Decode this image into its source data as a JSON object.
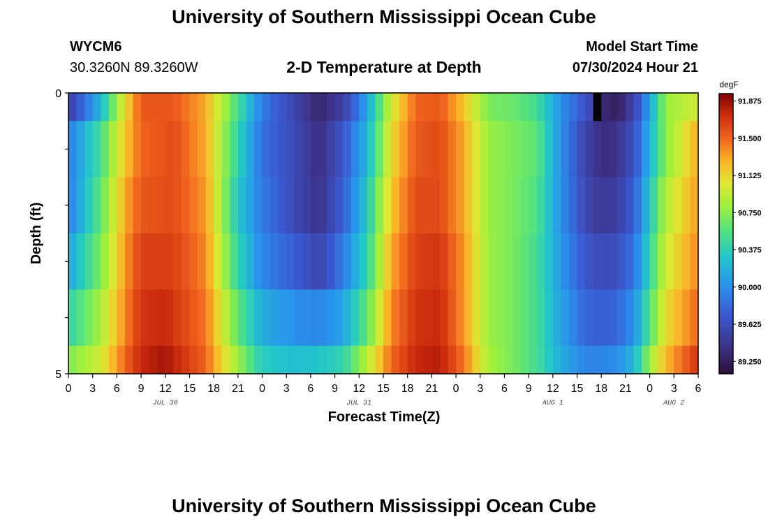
{
  "header": {
    "title": "University of Southern Mississippi Ocean Cube",
    "station_id": "WYCM6",
    "coords": "30.3260N  89.3260W",
    "subtitle": "2-D Temperature at Depth",
    "start_label": "Model Start Time",
    "start_value": "07/30/2024 Hour 21"
  },
  "footer": {
    "title": "University of Southern Mississippi Ocean Cube"
  },
  "chart_data": {
    "type": "heatmap",
    "xlabel": "Forecast Time(Z)",
    "ylabel": "Depth (ft)",
    "x_tick_labels": [
      "0",
      "3",
      "6",
      "9",
      "12",
      "15",
      "18",
      "21",
      "0",
      "3",
      "6",
      "9",
      "12",
      "15",
      "18",
      "21",
      "0",
      "3",
      "6",
      "9",
      "12",
      "15",
      "18",
      "21",
      "0",
      "3",
      "6"
    ],
    "date_labels": [
      {
        "label": "JUL 30",
        "hour": 12
      },
      {
        "label": "JUL 31",
        "hour": 36
      },
      {
        "label": "AUG 1",
        "hour": 60
      },
      {
        "label": "AUG 2",
        "hour": 75
      }
    ],
    "xlim": [
      0,
      78
    ],
    "ylim": [
      0,
      5
    ],
    "y_tick_labels": [
      "0",
      "5"
    ],
    "depth_levels": [
      0,
      1,
      2,
      3,
      4,
      5
    ],
    "colorbar": {
      "unit": "degF",
      "min": 89.125,
      "max": 91.95,
      "ticks": [
        "91.875",
        "91.500",
        "91.125",
        "90.750",
        "90.375",
        "90.000",
        "89.625",
        "89.250"
      ]
    },
    "temperature_traces": [
      {
        "depth_band": "0-0.5 ft",
        "points": [
          [
            0,
            89.5
          ],
          [
            4,
            90.2
          ],
          [
            7,
            91.1
          ],
          [
            9,
            91.55
          ],
          [
            13,
            91.55
          ],
          [
            17,
            91.3
          ],
          [
            20,
            90.7
          ],
          [
            24,
            89.9
          ],
          [
            28,
            89.55
          ],
          [
            31,
            89.3
          ],
          [
            34,
            89.5
          ],
          [
            37,
            90.1
          ],
          [
            40,
            91.0
          ],
          [
            43,
            91.5
          ],
          [
            46,
            91.55
          ],
          [
            49,
            91.2
          ],
          [
            52,
            90.7
          ],
          [
            55,
            90.65
          ],
          [
            58,
            90.5
          ],
          [
            61,
            90.0
          ],
          [
            64,
            89.7
          ],
          [
            66,
            89.35
          ],
          [
            68,
            89.25
          ],
          [
            70,
            89.55
          ],
          [
            72,
            90.1
          ],
          [
            74,
            90.8
          ],
          [
            78,
            91.0
          ]
        ]
      },
      {
        "depth_band": "0.5-1.5 ft",
        "points": [
          [
            0,
            89.9
          ],
          [
            4,
            90.5
          ],
          [
            7,
            91.2
          ],
          [
            9,
            91.5
          ],
          [
            13,
            91.6
          ],
          [
            17,
            91.3
          ],
          [
            21,
            90.4
          ],
          [
            24,
            89.85
          ],
          [
            28,
            89.6
          ],
          [
            31,
            89.35
          ],
          [
            34,
            89.7
          ],
          [
            37,
            90.2
          ],
          [
            40,
            91.1
          ],
          [
            43,
            91.55
          ],
          [
            46,
            91.6
          ],
          [
            49,
            91.3
          ],
          [
            52,
            90.8
          ],
          [
            55,
            90.7
          ],
          [
            58,
            90.6
          ],
          [
            61,
            90.0
          ],
          [
            64,
            89.55
          ],
          [
            66,
            89.35
          ],
          [
            68,
            89.4
          ],
          [
            70,
            89.65
          ],
          [
            72,
            90.2
          ],
          [
            74,
            90.75
          ],
          [
            78,
            91.3
          ]
        ]
      },
      {
        "depth_band": "1.5-2.5 ft",
        "points": [
          [
            0,
            89.9
          ],
          [
            4,
            90.6
          ],
          [
            7,
            91.3
          ],
          [
            9,
            91.55
          ],
          [
            13,
            91.6
          ],
          [
            17,
            91.35
          ],
          [
            21,
            90.3
          ],
          [
            24,
            89.9
          ],
          [
            28,
            89.6
          ],
          [
            31,
            89.4
          ],
          [
            34,
            89.75
          ],
          [
            37,
            90.3
          ],
          [
            40,
            91.2
          ],
          [
            43,
            91.6
          ],
          [
            46,
            91.6
          ],
          [
            49,
            91.3
          ],
          [
            52,
            90.8
          ],
          [
            55,
            90.7
          ],
          [
            58,
            90.55
          ],
          [
            61,
            90.0
          ],
          [
            64,
            89.6
          ],
          [
            66,
            89.45
          ],
          [
            68,
            89.5
          ],
          [
            70,
            89.75
          ],
          [
            72,
            90.3
          ],
          [
            74,
            90.9
          ],
          [
            78,
            91.35
          ]
        ]
      },
      {
        "depth_band": "2.5-3.5 ft",
        "points": [
          [
            0,
            90.1
          ],
          [
            4,
            90.7
          ],
          [
            7,
            91.35
          ],
          [
            9,
            91.65
          ],
          [
            13,
            91.65
          ],
          [
            17,
            91.4
          ],
          [
            21,
            90.4
          ],
          [
            24,
            89.95
          ],
          [
            28,
            89.75
          ],
          [
            31,
            89.55
          ],
          [
            34,
            89.9
          ],
          [
            37,
            90.4
          ],
          [
            40,
            91.3
          ],
          [
            43,
            91.65
          ],
          [
            46,
            91.7
          ],
          [
            49,
            91.35
          ],
          [
            52,
            90.8
          ],
          [
            55,
            90.7
          ],
          [
            58,
            90.5
          ],
          [
            61,
            90.05
          ],
          [
            64,
            89.7
          ],
          [
            66,
            89.6
          ],
          [
            68,
            89.65
          ],
          [
            70,
            89.85
          ],
          [
            72,
            90.4
          ],
          [
            74,
            91.0
          ],
          [
            78,
            91.4
          ]
        ]
      },
      {
        "depth_band": "3.5-4.5 ft",
        "points": [
          [
            0,
            90.4
          ],
          [
            4,
            90.85
          ],
          [
            7,
            91.4
          ],
          [
            9,
            91.7
          ],
          [
            12,
            91.75
          ],
          [
            17,
            91.45
          ],
          [
            21,
            90.6
          ],
          [
            24,
            90.15
          ],
          [
            28,
            90.0
          ],
          [
            31,
            89.95
          ],
          [
            34,
            90.1
          ],
          [
            37,
            90.6
          ],
          [
            40,
            91.4
          ],
          [
            43,
            91.7
          ],
          [
            46,
            91.75
          ],
          [
            49,
            91.35
          ],
          [
            52,
            90.8
          ],
          [
            55,
            90.7
          ],
          [
            58,
            90.5
          ],
          [
            61,
            90.1
          ],
          [
            64,
            89.8
          ],
          [
            66,
            89.75
          ],
          [
            68,
            89.8
          ],
          [
            70,
            90.0
          ],
          [
            72,
            90.55
          ],
          [
            74,
            91.1
          ],
          [
            78,
            91.5
          ]
        ]
      },
      {
        "depth_band": "4.5-5 ft",
        "points": [
          [
            0,
            90.7
          ],
          [
            4,
            91.0
          ],
          [
            7,
            91.5
          ],
          [
            9,
            91.75
          ],
          [
            12,
            91.85
          ],
          [
            17,
            91.5
          ],
          [
            21,
            90.8
          ],
          [
            24,
            90.35
          ],
          [
            28,
            90.25
          ],
          [
            31,
            90.3
          ],
          [
            34,
            90.4
          ],
          [
            37,
            90.9
          ],
          [
            40,
            91.5
          ],
          [
            43,
            91.75
          ],
          [
            46,
            91.8
          ],
          [
            49,
            91.45
          ],
          [
            52,
            90.85
          ],
          [
            55,
            90.7
          ],
          [
            58,
            90.5
          ],
          [
            61,
            90.15
          ],
          [
            64,
            89.95
          ],
          [
            66,
            89.95
          ],
          [
            68,
            90.0
          ],
          [
            70,
            90.2
          ],
          [
            72,
            90.8
          ],
          [
            74,
            91.25
          ],
          [
            78,
            91.7
          ]
        ]
      }
    ],
    "missing_cells": [
      {
        "hour": 65,
        "depth_band": "0-0.5 ft"
      }
    ]
  }
}
